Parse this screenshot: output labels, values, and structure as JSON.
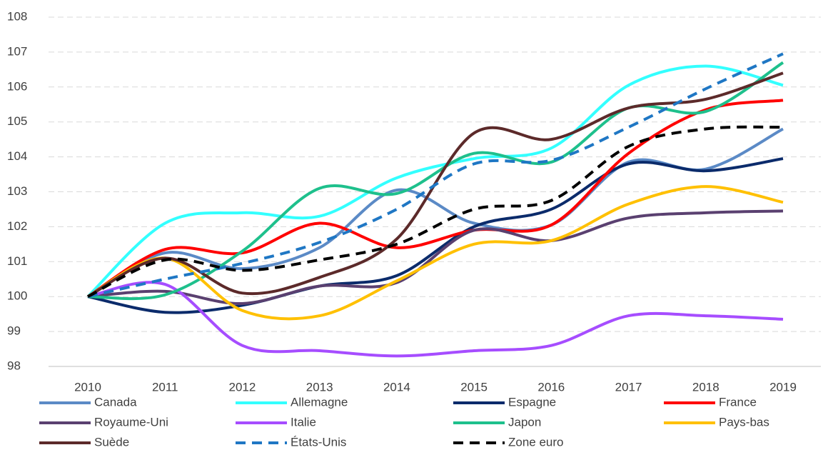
{
  "chart_data": {
    "type": "line",
    "categories": [
      "2010",
      "2011",
      "2012",
      "2013",
      "2014",
      "2015",
      "2016",
      "2017",
      "2018",
      "2019"
    ],
    "ylim": [
      98,
      108
    ],
    "yticks": [
      98,
      99,
      100,
      101,
      102,
      103,
      104,
      105,
      106,
      107,
      108
    ],
    "grid": true,
    "series": [
      {
        "name": "Canada",
        "color": "#5b8ac6",
        "values": [
          100,
          101.25,
          100.8,
          101.4,
          103.05,
          102.1,
          102.05,
          103.85,
          103.65,
          104.8
        ]
      },
      {
        "name": "Allemagne",
        "color": "#33ffff",
        "values": [
          100,
          102.1,
          102.4,
          102.3,
          103.4,
          103.95,
          104.25,
          106.05,
          106.6,
          106.05
        ]
      },
      {
        "name": "Espagne",
        "color": "#0b2b6b",
        "values": [
          100,
          99.55,
          99.75,
          100.3,
          100.6,
          102.0,
          102.5,
          103.8,
          103.6,
          103.95
        ]
      },
      {
        "name": "France",
        "color": "#ff0000",
        "values": [
          100,
          101.35,
          101.25,
          102.1,
          101.4,
          101.9,
          102.05,
          104.1,
          105.35,
          105.62
        ]
      },
      {
        "name": "Royaume-Uni",
        "color": "#5a4070",
        "values": [
          100,
          100.15,
          99.8,
          100.3,
          100.4,
          101.9,
          101.6,
          102.25,
          102.4,
          102.45
        ]
      },
      {
        "name": "Italie",
        "color": "#a64dff",
        "values": [
          100,
          100.35,
          98.6,
          98.45,
          98.3,
          98.45,
          98.6,
          99.45,
          99.45,
          99.35
        ]
      },
      {
        "name": "Japon",
        "color": "#1ec08c",
        "values": [
          100,
          100.05,
          101.3,
          103.1,
          102.95,
          104.1,
          103.85,
          105.4,
          105.3,
          106.7
        ]
      },
      {
        "name": "Pays-bas",
        "color": "#ffc000",
        "values": [
          100,
          101.1,
          99.6,
          99.45,
          100.45,
          101.5,
          101.6,
          102.65,
          103.15,
          102.7
        ]
      },
      {
        "name": "Suède",
        "color": "#5c2a2a",
        "values": [
          100,
          101.1,
          100.1,
          100.55,
          101.65,
          104.68,
          104.5,
          105.4,
          105.65,
          106.4
        ]
      },
      {
        "name": "États-Unis",
        "color": "#1f77c4",
        "dashed": true,
        "values": [
          100,
          100.5,
          100.95,
          101.55,
          102.5,
          103.8,
          103.9,
          104.85,
          105.95,
          106.95
        ]
      },
      {
        "name": "Zone euro",
        "color": "#000000",
        "dashed": true,
        "values": [
          100,
          101.05,
          100.75,
          101.05,
          101.5,
          102.5,
          102.75,
          104.3,
          104.8,
          104.85
        ]
      }
    ]
  }
}
